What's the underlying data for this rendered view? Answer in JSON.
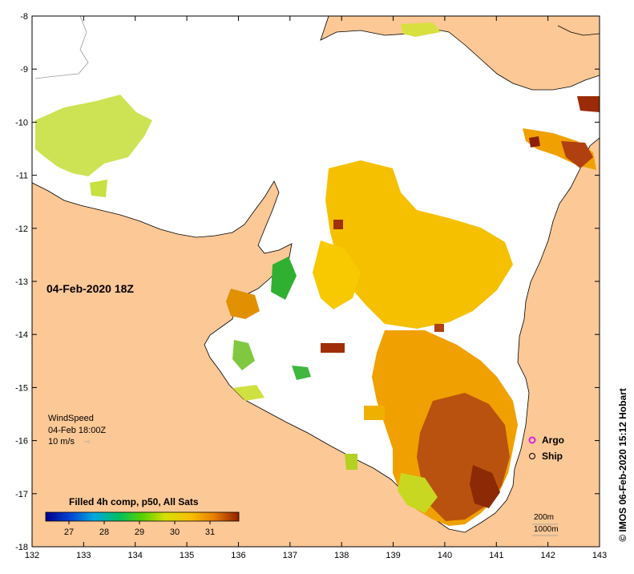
{
  "map": {
    "date_label": "04-Feb-2020 18Z",
    "copyright": "© IMOS 06-Feb-2020 15:12 Hobart",
    "x_ticks": [
      "132",
      "133",
      "134",
      "135",
      "136",
      "137",
      "138",
      "139",
      "140",
      "141",
      "142",
      "143"
    ],
    "y_ticks": [
      "-8",
      "-9",
      "-10",
      "-11",
      "-12",
      "-13",
      "-14",
      "-15",
      "-16",
      "-17",
      "-18"
    ],
    "colors": {
      "land": "#fcc896",
      "sea_no_data": "#ffffff",
      "coast": "#000000",
      "warm_sst": "#f5b800",
      "hot_sst": "#b04a0c"
    }
  },
  "wind": {
    "title": "WindSpeed",
    "time": "04-Feb 18:00Z",
    "scale": "10 m/s"
  },
  "colorbar": {
    "title": "Filled 4h comp, p50, All Sats",
    "ticks": [
      "27",
      "28",
      "29",
      "30",
      "31"
    ]
  },
  "legend": {
    "argo": "Argo",
    "ship": "Ship",
    "argo_color": "#e020e0"
  },
  "depth_labels": {
    "shallow": "200m",
    "deep": "1000m"
  }
}
